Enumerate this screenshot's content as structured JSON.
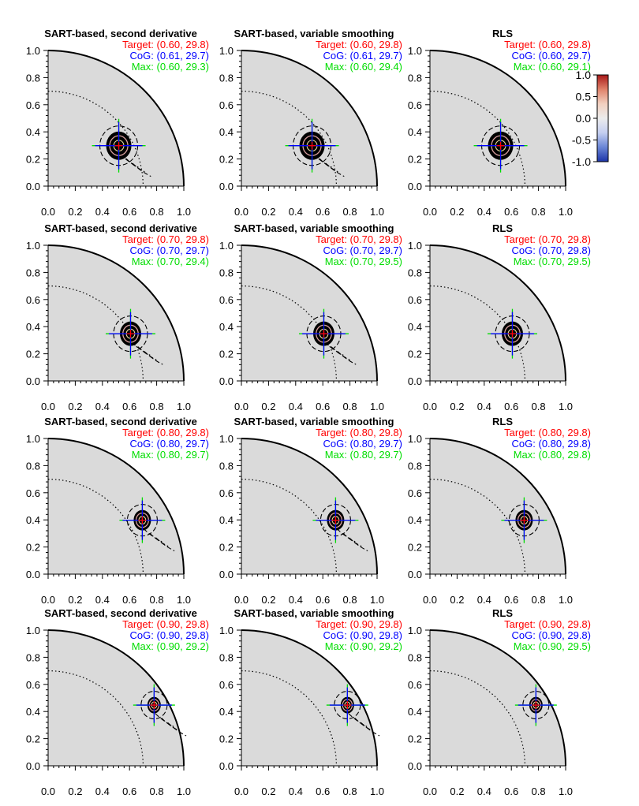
{
  "figure": {
    "titles": {
      "sart_second_derivative": "SART-based, second derivative",
      "sart_variable_smoothing": "SART-based, variable smoothing",
      "rls": "RLS"
    },
    "annotation_labels": {
      "target": "Target:",
      "cog": "CoG:",
      "max": "Max:"
    },
    "colors": {
      "target": "#ff0000",
      "cog": "#0000ff",
      "max": "#00dd00",
      "background": "#dadada",
      "blob": "#000000"
    }
  },
  "colorbar": {
    "ticks": [
      "1.0",
      "0.5",
      "0.0",
      "-0.5",
      "-1.0"
    ],
    "range": [
      -1.0,
      1.0
    ],
    "colors_top_to_bottom": [
      "#a81818",
      "#e0826a",
      "#f2d0c0",
      "#ececec",
      "#c4cef0",
      "#6a86d6",
      "#1c34a8"
    ]
  },
  "chart_data": [
    {
      "type": "contour",
      "method": "sart_second_derivative",
      "title": "SART-based, second derivative",
      "target": "(0.60, 29.8)",
      "cog": "(0.61, 29.7)",
      "max": "(0.60, 29.3)",
      "target_r": 0.6,
      "target_theta": 29.8,
      "cog_r": 0.61,
      "cog_theta": 29.7,
      "max_r": 0.6,
      "max_theta": 29.3,
      "xticks": [
        "0.0",
        "0.2",
        "0.4",
        "0.6",
        "0.8",
        "1.0"
      ],
      "yticks": [
        "0.0",
        "0.2",
        "0.4",
        "0.6",
        "0.8",
        "1.0"
      ],
      "xlim": [
        0,
        1
      ],
      "ylim": [
        0,
        1
      ]
    },
    {
      "type": "contour",
      "method": "sart_variable_smoothing",
      "title": "SART-based, variable smoothing",
      "target": "(0.60, 29.8)",
      "cog": "(0.61, 29.7)",
      "max": "(0.60, 29.4)",
      "target_r": 0.6,
      "target_theta": 29.8,
      "cog_r": 0.61,
      "cog_theta": 29.7,
      "max_r": 0.6,
      "max_theta": 29.4,
      "xticks": [
        "0.0",
        "0.2",
        "0.4",
        "0.6",
        "0.8",
        "1.0"
      ],
      "yticks": [
        "0.0",
        "0.2",
        "0.4",
        "0.6",
        "0.8",
        "1.0"
      ],
      "xlim": [
        0,
        1
      ],
      "ylim": [
        0,
        1
      ]
    },
    {
      "type": "contour",
      "method": "rls",
      "title": "RLS",
      "target": "(0.60, 29.8)",
      "cog": "(0.60, 29.7)",
      "max": "(0.60, 29.1)",
      "target_r": 0.6,
      "target_theta": 29.8,
      "cog_r": 0.6,
      "cog_theta": 29.7,
      "max_r": 0.6,
      "max_theta": 29.1,
      "xticks": [
        "0.0",
        "0.2",
        "0.4",
        "0.6",
        "0.8",
        "1.0"
      ],
      "yticks": [
        "0.0",
        "0.2",
        "0.4",
        "0.6",
        "0.8",
        "1.0"
      ],
      "xlim": [
        0,
        1
      ],
      "ylim": [
        0,
        1
      ]
    },
    {
      "type": "contour",
      "method": "sart_second_derivative",
      "title": "SART-based, second derivative",
      "target": "(0.70, 29.8)",
      "cog": "(0.70, 29.7)",
      "max": "(0.70, 29.4)",
      "target_r": 0.7,
      "target_theta": 29.8,
      "cog_r": 0.7,
      "cog_theta": 29.7,
      "max_r": 0.7,
      "max_theta": 29.4,
      "xticks": [
        "0.0",
        "0.2",
        "0.4",
        "0.6",
        "0.8",
        "1.0"
      ],
      "yticks": [
        "0.0",
        "0.2",
        "0.4",
        "0.6",
        "0.8",
        "1.0"
      ],
      "xlim": [
        0,
        1
      ],
      "ylim": [
        0,
        1
      ]
    },
    {
      "type": "contour",
      "method": "sart_variable_smoothing",
      "title": "SART-based, variable smoothing",
      "target": "(0.70, 29.8)",
      "cog": "(0.70, 29.7)",
      "max": "(0.70, 29.5)",
      "target_r": 0.7,
      "target_theta": 29.8,
      "cog_r": 0.7,
      "cog_theta": 29.7,
      "max_r": 0.7,
      "max_theta": 29.5,
      "xticks": [
        "0.0",
        "0.2",
        "0.4",
        "0.6",
        "0.8",
        "1.0"
      ],
      "yticks": [
        "0.0",
        "0.2",
        "0.4",
        "0.6",
        "0.8",
        "1.0"
      ],
      "xlim": [
        0,
        1
      ],
      "ylim": [
        0,
        1
      ]
    },
    {
      "type": "contour",
      "method": "rls",
      "title": "RLS",
      "target": "(0.70, 29.8)",
      "cog": "(0.70, 29.8)",
      "max": "(0.70, 29.5)",
      "target_r": 0.7,
      "target_theta": 29.8,
      "cog_r": 0.7,
      "cog_theta": 29.8,
      "max_r": 0.7,
      "max_theta": 29.5,
      "xticks": [
        "0.0",
        "0.2",
        "0.4",
        "0.6",
        "0.8",
        "1.0"
      ],
      "yticks": [
        "0.0",
        "0.2",
        "0.4",
        "0.6",
        "0.8",
        "1.0"
      ],
      "xlim": [
        0,
        1
      ],
      "ylim": [
        0,
        1
      ]
    },
    {
      "type": "contour",
      "method": "sart_second_derivative",
      "title": "SART-based, second derivative",
      "target": "(0.80, 29.8)",
      "cog": "(0.80, 29.7)",
      "max": "(0.80, 29.7)",
      "target_r": 0.8,
      "target_theta": 29.8,
      "cog_r": 0.8,
      "cog_theta": 29.7,
      "max_r": 0.8,
      "max_theta": 29.7,
      "xticks": [
        "0.0",
        "0.2",
        "0.4",
        "0.6",
        "0.8",
        "1.0"
      ],
      "yticks": [
        "0.0",
        "0.2",
        "0.4",
        "0.6",
        "0.8",
        "1.0"
      ],
      "xlim": [
        0,
        1
      ],
      "ylim": [
        0,
        1
      ]
    },
    {
      "type": "contour",
      "method": "sart_variable_smoothing",
      "title": "SART-based, variable smoothing",
      "target": "(0.80, 29.8)",
      "cog": "(0.80, 29.7)",
      "max": "(0.80, 29.7)",
      "target_r": 0.8,
      "target_theta": 29.8,
      "cog_r": 0.8,
      "cog_theta": 29.7,
      "max_r": 0.8,
      "max_theta": 29.7,
      "xticks": [
        "0.0",
        "0.2",
        "0.4",
        "0.6",
        "0.8",
        "1.0"
      ],
      "yticks": [
        "0.0",
        "0.2",
        "0.4",
        "0.6",
        "0.8",
        "1.0"
      ],
      "xlim": [
        0,
        1
      ],
      "ylim": [
        0,
        1
      ]
    },
    {
      "type": "contour",
      "method": "rls",
      "title": "RLS",
      "target": "(0.80, 29.8)",
      "cog": "(0.80, 29.8)",
      "max": "(0.80, 29.8)",
      "target_r": 0.8,
      "target_theta": 29.8,
      "cog_r": 0.8,
      "cog_theta": 29.8,
      "max_r": 0.8,
      "max_theta": 29.8,
      "xticks": [
        "0.0",
        "0.2",
        "0.4",
        "0.6",
        "0.8",
        "1.0"
      ],
      "yticks": [
        "0.0",
        "0.2",
        "0.4",
        "0.6",
        "0.8",
        "1.0"
      ],
      "xlim": [
        0,
        1
      ],
      "ylim": [
        0,
        1
      ]
    },
    {
      "type": "contour",
      "method": "sart_second_derivative",
      "title": "SART-based, second derivative",
      "target": "(0.90, 29.8)",
      "cog": "(0.90, 29.8)",
      "max": "(0.90, 29.2)",
      "target_r": 0.9,
      "target_theta": 29.8,
      "cog_r": 0.9,
      "cog_theta": 29.8,
      "max_r": 0.9,
      "max_theta": 29.2,
      "xticks": [
        "0.0",
        "0.2",
        "0.4",
        "0.6",
        "0.8",
        "1.0"
      ],
      "yticks": [
        "0.0",
        "0.2",
        "0.4",
        "0.6",
        "0.8",
        "1.0"
      ],
      "xlim": [
        0,
        1
      ],
      "ylim": [
        0,
        1
      ]
    },
    {
      "type": "contour",
      "method": "sart_variable_smoothing",
      "title": "SART-based, variable smoothing",
      "target": "(0.90, 29.8)",
      "cog": "(0.90, 29.8)",
      "max": "(0.90, 29.2)",
      "target_r": 0.9,
      "target_theta": 29.8,
      "cog_r": 0.9,
      "cog_theta": 29.8,
      "max_r": 0.9,
      "max_theta": 29.2,
      "xticks": [
        "0.0",
        "0.2",
        "0.4",
        "0.6",
        "0.8",
        "1.0"
      ],
      "yticks": [
        "0.0",
        "0.2",
        "0.4",
        "0.6",
        "0.8",
        "1.0"
      ],
      "xlim": [
        0,
        1
      ],
      "ylim": [
        0,
        1
      ]
    },
    {
      "type": "contour",
      "method": "rls",
      "title": "RLS",
      "target": "(0.90, 29.8)",
      "cog": "(0.90, 29.8)",
      "max": "(0.90, 29.5)",
      "target_r": 0.9,
      "target_theta": 29.8,
      "cog_r": 0.9,
      "cog_theta": 29.8,
      "max_r": 0.9,
      "max_theta": 29.5,
      "xticks": [
        "0.0",
        "0.2",
        "0.4",
        "0.6",
        "0.8",
        "1.0"
      ],
      "yticks": [
        "0.0",
        "0.2",
        "0.4",
        "0.6",
        "0.8",
        "1.0"
      ],
      "xlim": [
        0,
        1
      ],
      "ylim": [
        0,
        1
      ]
    }
  ]
}
